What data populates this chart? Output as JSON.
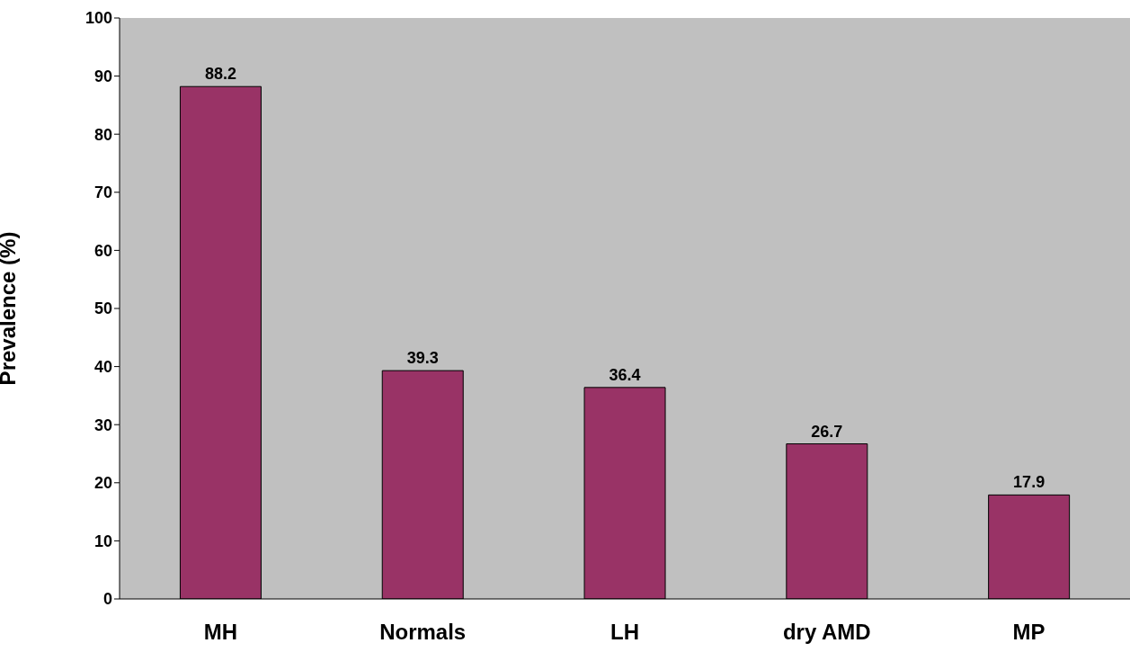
{
  "chart_data": {
    "type": "bar",
    "ylabel": "Prevalence (%)",
    "categories": [
      "MH",
      "Normals",
      "LH",
      "dry AMD",
      "MP"
    ],
    "values": [
      88.2,
      39.3,
      36.4,
      26.7,
      17.9
    ],
    "color": "#993366",
    "ylim": [
      0,
      100
    ],
    "yticks": [
      0,
      10,
      20,
      30,
      40,
      50,
      60,
      70,
      80,
      90,
      100
    ],
    "data_labels": true
  }
}
